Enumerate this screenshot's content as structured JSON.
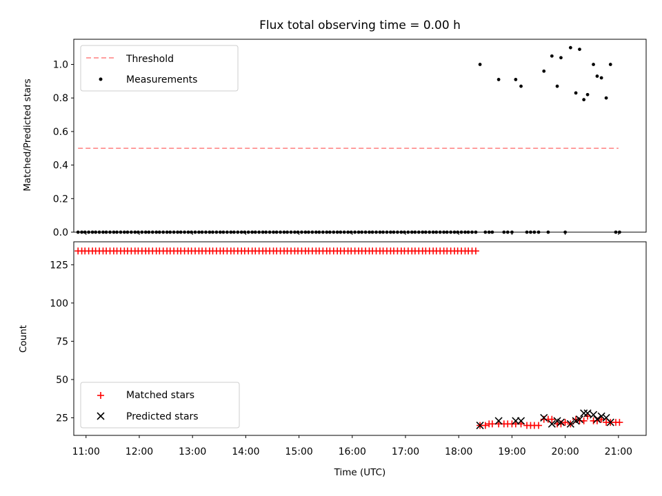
{
  "chart_data": [
    {
      "type": "scatter",
      "title": "Flux total observing time = 0.00 h",
      "xlabel": "",
      "ylabel": "Matched/Predicted stars",
      "xlim": [
        10.77,
        21.52
      ],
      "ylim": [
        0,
        1.15
      ],
      "yticks": [
        0.0,
        0.2,
        0.4,
        0.6,
        0.8,
        1.0
      ],
      "ytick_labels": [
        "0.0",
        "0.2",
        "0.4",
        "0.6",
        "0.8",
        "1.0"
      ],
      "legend_position": "upper-left",
      "series": [
        {
          "name": "Threshold",
          "kind": "line",
          "style": "dashed",
          "color": "#ff7f7f",
          "x": [
            10.85,
            21.0
          ],
          "y": [
            0.5,
            0.5
          ]
        },
        {
          "name": "Measurements",
          "kind": "scatter",
          "marker": "dot",
          "color": "#000000",
          "x": [
            18.4,
            18.75,
            19.07,
            19.17,
            19.6,
            19.75,
            19.85,
            19.92,
            20.1,
            20.2,
            20.27,
            20.35,
            20.42,
            20.53,
            20.6,
            20.68,
            20.77,
            20.85,
            10.85,
            10.92,
            10.98,
            11.05,
            11.12,
            11.18,
            11.25,
            11.32,
            11.38,
            11.45,
            11.52,
            11.58,
            11.65,
            11.72,
            11.78,
            11.85,
            11.92,
            11.98,
            12.05,
            12.12,
            12.18,
            12.25,
            12.32,
            12.38,
            12.45,
            12.52,
            12.58,
            12.65,
            12.72,
            12.78,
            12.85,
            12.92,
            12.98,
            13.05,
            13.12,
            13.18,
            13.25,
            13.32,
            13.38,
            13.45,
            13.52,
            13.58,
            13.65,
            13.72,
            13.78,
            13.85,
            13.92,
            13.98,
            14.05,
            14.12,
            14.18,
            14.25,
            14.32,
            14.38,
            14.45,
            14.52,
            14.58,
            14.65,
            14.72,
            14.78,
            14.85,
            14.92,
            14.98,
            15.05,
            15.12,
            15.18,
            15.25,
            15.32,
            15.38,
            15.45,
            15.52,
            15.58,
            15.65,
            15.72,
            15.78,
            15.85,
            15.92,
            15.98,
            16.05,
            16.12,
            16.18,
            16.25,
            16.32,
            16.38,
            16.45,
            16.52,
            16.58,
            16.65,
            16.72,
            16.78,
            16.85,
            16.92,
            16.98,
            17.05,
            17.12,
            17.18,
            17.25,
            17.32,
            17.38,
            17.45,
            17.52,
            17.58,
            17.65,
            17.72,
            17.78,
            17.85,
            17.92,
            17.98,
            18.05,
            18.12,
            18.18,
            18.25,
            18.32,
            18.5,
            18.57,
            18.63,
            18.85,
            18.92,
            19.0,
            19.28,
            19.35,
            19.42,
            19.5,
            19.68,
            20.0,
            20.95,
            21.02
          ],
          "y": [
            1.0,
            0.91,
            0.91,
            0.87,
            0.96,
            1.05,
            0.87,
            1.04,
            1.1,
            0.83,
            1.09,
            0.79,
            0.82,
            1.0,
            0.93,
            0.92,
            0.8,
            1.0,
            0,
            0,
            0,
            0,
            0,
            0,
            0,
            0,
            0,
            0,
            0,
            0,
            0,
            0,
            0,
            0,
            0,
            0,
            0,
            0,
            0,
            0,
            0,
            0,
            0,
            0,
            0,
            0,
            0,
            0,
            0,
            0,
            0,
            0,
            0,
            0,
            0,
            0,
            0,
            0,
            0,
            0,
            0,
            0,
            0,
            0,
            0,
            0,
            0,
            0,
            0,
            0,
            0,
            0,
            0,
            0,
            0,
            0,
            0,
            0,
            0,
            0,
            0,
            0,
            0,
            0,
            0,
            0,
            0,
            0,
            0,
            0,
            0,
            0,
            0,
            0,
            0,
            0,
            0,
            0,
            0,
            0,
            0,
            0,
            0,
            0,
            0,
            0,
            0,
            0,
            0,
            0,
            0,
            0,
            0,
            0,
            0,
            0,
            0,
            0,
            0,
            0,
            0,
            0,
            0,
            0,
            0,
            0,
            0,
            0,
            0,
            0,
            0,
            0,
            0,
            0,
            0,
            0,
            0,
            0,
            0,
            0,
            0,
            0,
            0,
            0,
            0
          ]
        }
      ]
    },
    {
      "type": "scatter",
      "title": "",
      "xlabel": "Time (UTC)",
      "ylabel": "Count",
      "xlim": [
        10.77,
        21.52
      ],
      "ylim": [
        13.5,
        140
      ],
      "yticks": [
        25,
        50,
        75,
        100,
        125
      ],
      "ytick_labels": [
        "25",
        "50",
        "75",
        "100",
        "125"
      ],
      "xticks": [
        11,
        12,
        13,
        14,
        15,
        16,
        17,
        18,
        19,
        20,
        21
      ],
      "xtick_labels": [
        "11:00",
        "12:00",
        "13:00",
        "14:00",
        "15:00",
        "16:00",
        "17:00",
        "18:00",
        "19:00",
        "20:00",
        "21:00"
      ],
      "legend_position": "lower-left",
      "series": [
        {
          "name": "Matched stars",
          "kind": "scatter",
          "marker": "plus",
          "color": "#ff0000",
          "x": [
            10.85,
            10.92,
            10.98,
            11.05,
            11.12,
            11.18,
            11.25,
            11.32,
            11.38,
            11.45,
            11.52,
            11.58,
            11.65,
            11.72,
            11.78,
            11.85,
            11.92,
            11.98,
            12.05,
            12.12,
            12.18,
            12.25,
            12.32,
            12.38,
            12.45,
            12.52,
            12.58,
            12.65,
            12.72,
            12.78,
            12.85,
            12.92,
            12.98,
            13.05,
            13.12,
            13.18,
            13.25,
            13.32,
            13.38,
            13.45,
            13.52,
            13.58,
            13.65,
            13.72,
            13.78,
            13.85,
            13.92,
            13.98,
            14.05,
            14.12,
            14.18,
            14.25,
            14.32,
            14.38,
            14.45,
            14.52,
            14.58,
            14.65,
            14.72,
            14.78,
            14.85,
            14.92,
            14.98,
            15.05,
            15.12,
            15.18,
            15.25,
            15.32,
            15.38,
            15.45,
            15.52,
            15.58,
            15.65,
            15.72,
            15.78,
            15.85,
            15.92,
            15.98,
            16.05,
            16.12,
            16.18,
            16.25,
            16.32,
            16.38,
            16.45,
            16.52,
            16.58,
            16.65,
            16.72,
            16.78,
            16.85,
            16.92,
            16.98,
            17.05,
            17.12,
            17.18,
            17.25,
            17.32,
            17.38,
            17.45,
            17.52,
            17.58,
            17.65,
            17.72,
            17.78,
            17.85,
            17.92,
            17.98,
            18.05,
            18.12,
            18.18,
            18.25,
            18.32,
            18.4,
            18.5,
            18.57,
            18.63,
            18.75,
            18.85,
            18.92,
            19.0,
            19.07,
            19.17,
            19.28,
            19.35,
            19.42,
            19.5,
            19.6,
            19.68,
            19.75,
            19.85,
            19.92,
            20.0,
            20.1,
            20.2,
            20.27,
            20.35,
            20.42,
            20.53,
            20.6,
            20.68,
            20.77,
            20.85,
            20.95,
            21.02
          ],
          "y": [
            134,
            134,
            134,
            134,
            134,
            134,
            134,
            134,
            134,
            134,
            134,
            134,
            134,
            134,
            134,
            134,
            134,
            134,
            134,
            134,
            134,
            134,
            134,
            134,
            134,
            134,
            134,
            134,
            134,
            134,
            134,
            134,
            134,
            134,
            134,
            134,
            134,
            134,
            134,
            134,
            134,
            134,
            134,
            134,
            134,
            134,
            134,
            134,
            134,
            134,
            134,
            134,
            134,
            134,
            134,
            134,
            134,
            134,
            134,
            134,
            134,
            134,
            134,
            134,
            134,
            134,
            134,
            134,
            134,
            134,
            134,
            134,
            134,
            134,
            134,
            134,
            134,
            134,
            134,
            134,
            134,
            134,
            134,
            134,
            134,
            134,
            134,
            134,
            134,
            134,
            134,
            134,
            134,
            134,
            134,
            134,
            134,
            134,
            134,
            134,
            134,
            134,
            134,
            134,
            134,
            134,
            134,
            134,
            134,
            134,
            134,
            134,
            134,
            20,
            20,
            21,
            21,
            21,
            21,
            21,
            21,
            21,
            21,
            20,
            20,
            20,
            20,
            24,
            24,
            24,
            21,
            21,
            22,
            21,
            24,
            23,
            23,
            26,
            23,
            23,
            24,
            22,
            22,
            22,
            22
          ]
        },
        {
          "name": "Predicted stars",
          "kind": "scatter",
          "marker": "x",
          "color": "#000000",
          "x": [
            18.4,
            18.75,
            19.07,
            19.17,
            19.6,
            19.75,
            19.85,
            19.92,
            20.1,
            20.2,
            20.27,
            20.35,
            20.42,
            20.53,
            20.6,
            20.68,
            20.77,
            20.85
          ],
          "y": [
            20,
            23,
            23,
            23,
            25,
            21,
            23,
            22,
            21,
            23,
            24,
            28,
            28,
            27,
            24,
            26,
            25,
            22
          ]
        }
      ]
    }
  ]
}
